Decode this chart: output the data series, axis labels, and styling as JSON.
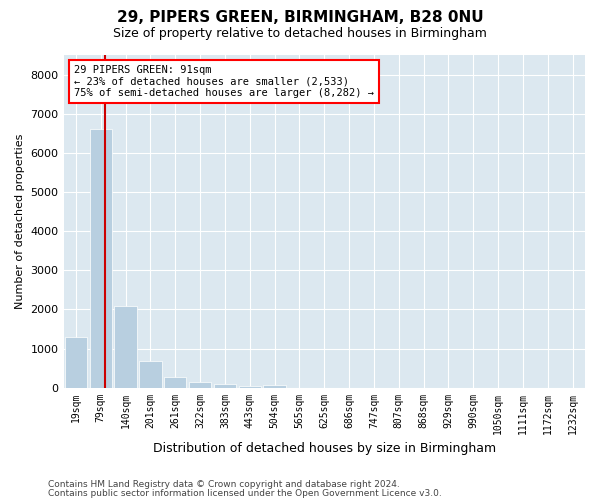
{
  "title1": "29, PIPERS GREEN, BIRMINGHAM, B28 0NU",
  "title2": "Size of property relative to detached houses in Birmingham",
  "xlabel": "Distribution of detached houses by size in Birmingham",
  "ylabel": "Number of detached properties",
  "bar_labels": [
    "19sqm",
    "79sqm",
    "140sqm",
    "201sqm",
    "261sqm",
    "322sqm",
    "383sqm",
    "443sqm",
    "504sqm",
    "565sqm",
    "625sqm",
    "686sqm",
    "747sqm",
    "807sqm",
    "868sqm",
    "929sqm",
    "990sqm",
    "1050sqm",
    "1111sqm",
    "1172sqm",
    "1232sqm"
  ],
  "bar_values": [
    1300,
    6600,
    2080,
    690,
    280,
    150,
    90,
    55,
    60,
    0,
    0,
    0,
    0,
    0,
    0,
    0,
    0,
    0,
    0,
    0,
    0
  ],
  "bar_color": "#b8cfe0",
  "property_line_x": 1.18,
  "annotation_text": "29 PIPERS GREEN: 91sqm\n← 23% of detached houses are smaller (2,533)\n75% of semi-detached houses are larger (8,282) →",
  "annotation_box_color": "white",
  "annotation_box_edge": "red",
  "red_line_color": "#cc0000",
  "ylim": [
    0,
    8500
  ],
  "yticks": [
    0,
    1000,
    2000,
    3000,
    4000,
    5000,
    6000,
    7000,
    8000
  ],
  "plot_background": "#dce8f0",
  "grid_color": "white",
  "footer1": "Contains HM Land Registry data © Crown copyright and database right 2024.",
  "footer2": "Contains public sector information licensed under the Open Government Licence v3.0."
}
